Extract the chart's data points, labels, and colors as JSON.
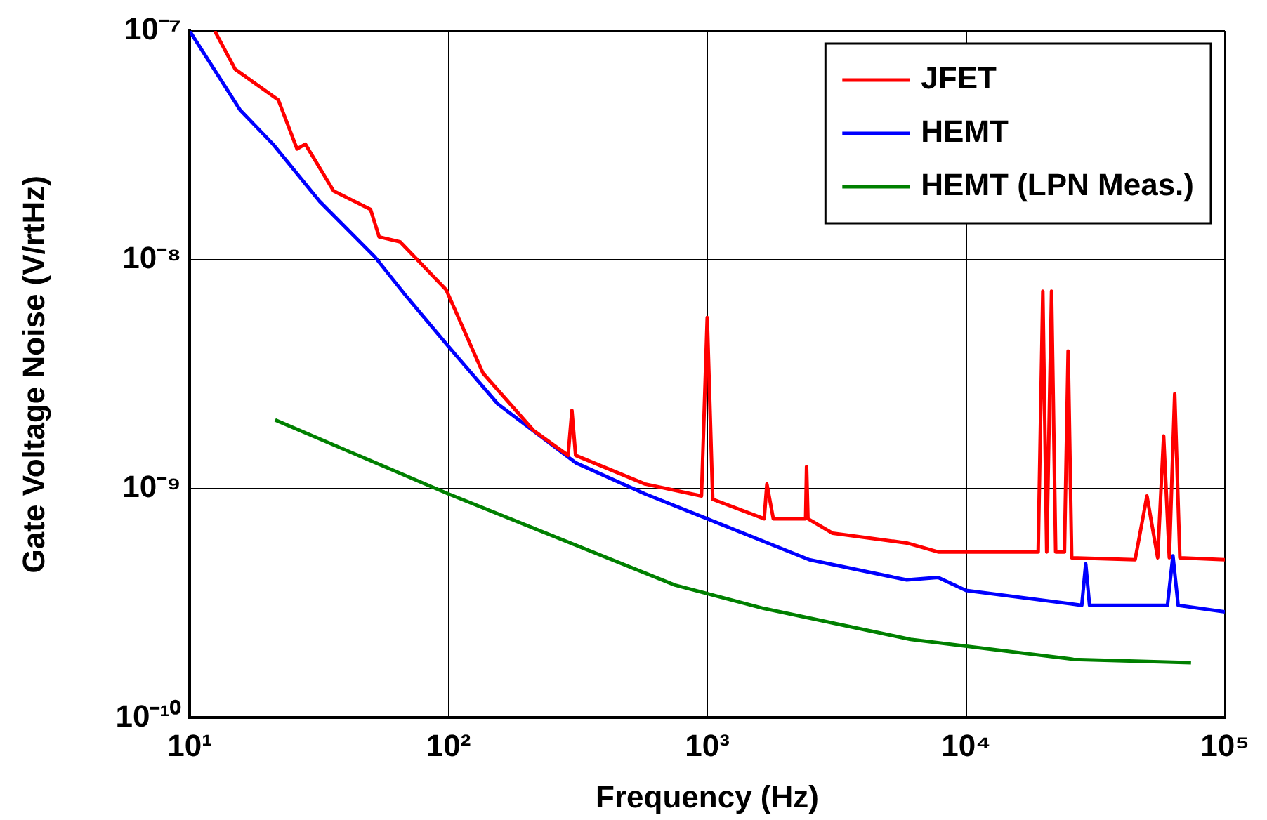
{
  "chart_data": {
    "type": "line",
    "xlabel": "Frequency (Hz)",
    "ylabel": "Gate Voltage Noise (V/rtHz)",
    "log": "xy",
    "grid": true,
    "legend": "top right",
    "marker": "none",
    "line_style": "solid",
    "xlim": [
      10,
      100000
    ],
    "xticks": [
      {
        "value": 10,
        "label": "10¹"
      },
      {
        "value": 100,
        "label": "10²"
      },
      {
        "value": 1000,
        "label": "10³"
      },
      {
        "value": 10000,
        "label": "10⁴"
      },
      {
        "value": 100000,
        "label": "10⁵"
      }
    ],
    "ylim": [
      1e-10,
      1e-07
    ],
    "yticks": [
      {
        "value": 1e-10,
        "label": "10⁻¹⁰"
      },
      {
        "value": 1e-09,
        "label": "10⁻⁹"
      },
      {
        "value": 1e-08,
        "label": "10⁻⁸"
      },
      {
        "value": 1e-07,
        "label": "10⁻⁷"
      }
    ],
    "series": [
      {
        "name": "JFET",
        "color": "#ff0000",
        "x": [
          12.5,
          15,
          22,
          26,
          28,
          36,
          50,
          54,
          65,
          98,
          136,
          213,
          290,
          300,
          310,
          575,
          950,
          1000,
          1050,
          1660,
          1700,
          1800,
          2400,
          2420,
          2450,
          3050,
          5900,
          7800,
          10000,
          19000,
          19800,
          20500,
          21400,
          22200,
          24000,
          24800,
          25600,
          45000,
          50000,
          55000,
          58000,
          61000,
          64000,
          67000,
          100000
        ],
        "values": [
          1e-07,
          6.8e-08,
          5e-08,
          3.05e-08,
          3.2e-08,
          2e-08,
          1.66e-08,
          1.26e-08,
          1.2e-08,
          7.4e-09,
          3.2e-09,
          1.8e-09,
          1.4e-09,
          2.2e-09,
          1.4e-09,
          1.05e-09,
          9.3e-10,
          5.6e-09,
          9e-10,
          7.4e-10,
          1.05e-09,
          7.4e-10,
          7.4e-10,
          1.25e-09,
          7.4e-10,
          6.4e-10,
          5.8e-10,
          5.3e-10,
          5.3e-10,
          5.3e-10,
          7.3e-09,
          5.3e-10,
          7.3e-09,
          5.3e-10,
          5.3e-10,
          4e-09,
          5e-10,
          4.9e-10,
          9.3e-10,
          5e-10,
          1.7e-09,
          5e-10,
          2.6e-09,
          5e-10,
          4.9e-10
        ]
      },
      {
        "name": "HEMT",
        "color": "#0000ff",
        "x": [
          10,
          15.7,
          21,
          31.8,
          52,
          69,
          98,
          155,
          310,
          575,
          1000,
          2480,
          5900,
          7800,
          10000,
          28000,
          29000,
          30000,
          60000,
          63000,
          66000,
          100000
        ],
        "values": [
          1e-07,
          4.5e-08,
          3.2e-08,
          1.8e-08,
          1.03e-08,
          6.9e-09,
          4.3e-09,
          2.35e-09,
          1.3e-09,
          9.5e-10,
          7.4e-10,
          4.9e-10,
          4e-10,
          4.1e-10,
          3.6e-10,
          3.1e-10,
          4.7e-10,
          3.1e-10,
          3.1e-10,
          5.1e-10,
          3.1e-10,
          2.9e-10
        ]
      },
      {
        "name": "HEMT (LPN Meas.)",
        "color": "#008000",
        "x": [
          21.4,
          100,
          750,
          1660,
          6100,
          26000,
          74000
        ],
        "values": [
          2e-09,
          9.5e-10,
          3.8e-10,
          3e-10,
          2.2e-10,
          1.8e-10,
          1.74e-10
        ]
      }
    ]
  }
}
